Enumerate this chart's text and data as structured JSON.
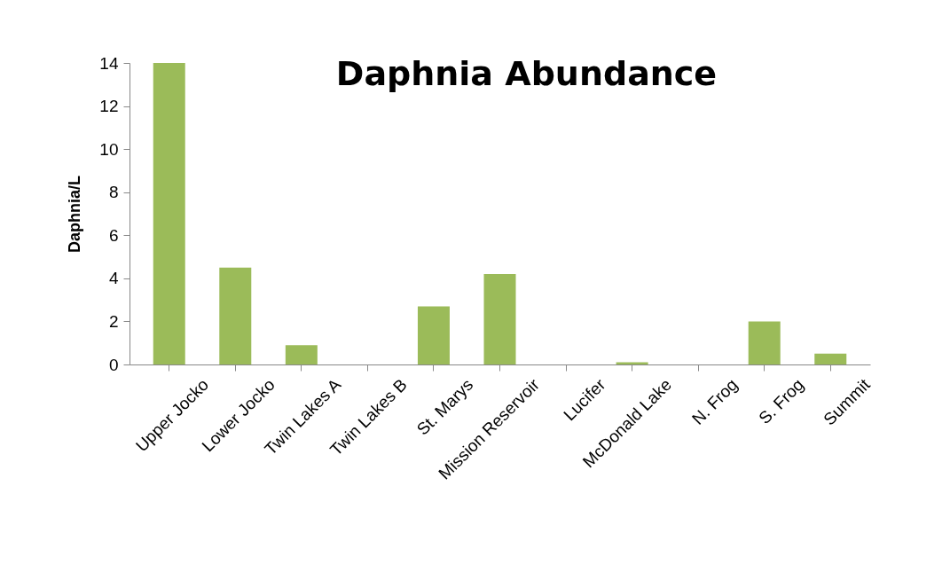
{
  "chart_data": {
    "type": "bar",
    "title": "Daphnia Abundance",
    "ylabel": "Daphnia/L",
    "categories": [
      "Upper Jocko",
      "Lower Jocko",
      "Twin Lakes A",
      "Twin Lakes B",
      "St. Marys",
      "Mission Reservoir",
      "Lucifer",
      "McDonald Lake",
      "N. Frog",
      "S. Frog",
      "Summit"
    ],
    "values": [
      14,
      4.5,
      0.9,
      0,
      2.7,
      4.2,
      0,
      0.1,
      0,
      2,
      0.5
    ],
    "color": "#9bbb59",
    "ylim": [
      0,
      14
    ],
    "yticks": [
      0,
      2,
      4,
      6,
      8,
      10,
      12,
      14
    ],
    "grid": false
  }
}
